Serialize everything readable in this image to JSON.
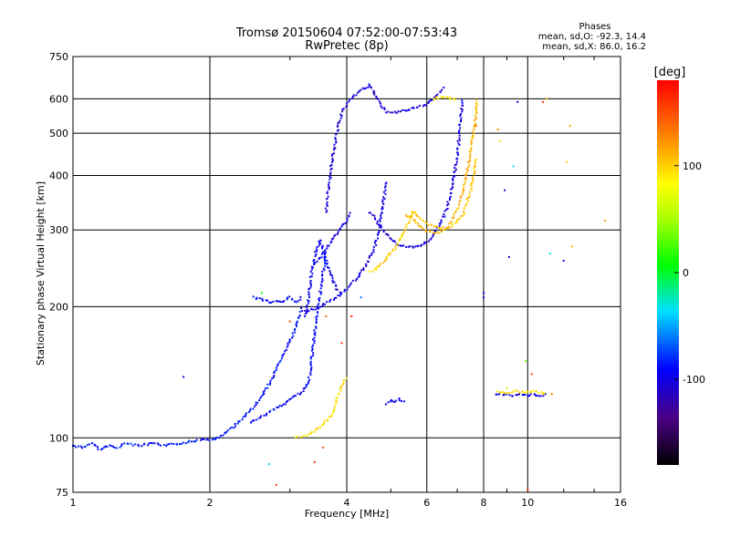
{
  "chart_data": {
    "type": "scatter",
    "title": "Tromsø 20150604 07:52:00-07:53:43",
    "subtitle": "RwPretec (8p)",
    "xlabel": "Frequency [MHz]",
    "ylabel": "Stationary phase Virtual Height [km]",
    "x_scale": "log",
    "y_scale": "log",
    "xlim": [
      1,
      16
    ],
    "ylim": [
      75,
      750
    ],
    "x_ticks": [
      1,
      2,
      4,
      6,
      8,
      10,
      16
    ],
    "y_ticks": [
      75,
      100,
      200,
      300,
      400,
      500,
      600,
      750
    ],
    "grid": true,
    "stats": {
      "title": "Phases",
      "line1": "mean, sd,O: -92.3, 14.4",
      "line2": "mean, sd,X:  86.0, 16.2"
    },
    "colorbar": {
      "label": "[deg]",
      "range": [
        -180,
        180
      ],
      "ticks": [
        100,
        0,
        -100
      ],
      "placement": "right"
    },
    "traces": [
      {
        "phase": -85,
        "points": [
          [
            1.0,
            96
          ],
          [
            1.05,
            95
          ],
          [
            1.1,
            97
          ],
          [
            1.15,
            94
          ],
          [
            1.2,
            96
          ],
          [
            1.25,
            95
          ],
          [
            1.3,
            97
          ],
          [
            1.4,
            96
          ],
          [
            1.5,
            97
          ],
          [
            1.6,
            96
          ],
          [
            1.7,
            97
          ],
          [
            1.8,
            98
          ],
          [
            1.9,
            99
          ],
          [
            2.0,
            99
          ],
          [
            2.1,
            100
          ],
          [
            2.2,
            104
          ],
          [
            2.3,
            108
          ],
          [
            2.4,
            113
          ],
          [
            2.5,
            118
          ],
          [
            2.6,
            124
          ],
          [
            2.7,
            133
          ],
          [
            2.8,
            143
          ],
          [
            2.9,
            155
          ],
          [
            3.0,
            167
          ],
          [
            3.1,
            180
          ],
          [
            3.2,
            200
          ]
        ]
      },
      {
        "phase": -90,
        "points": [
          [
            2.45,
            108
          ],
          [
            2.6,
            112
          ],
          [
            2.8,
            117
          ],
          [
            3.0,
            122
          ],
          [
            3.2,
            128
          ],
          [
            3.3,
            135
          ],
          [
            3.35,
            150
          ],
          [
            3.4,
            175
          ],
          [
            3.45,
            195
          ],
          [
            3.5,
            215
          ],
          [
            3.55,
            240
          ],
          [
            3.6,
            270
          ]
        ]
      },
      {
        "phase": -95,
        "points": [
          [
            3.25,
            190
          ],
          [
            3.3,
            210
          ],
          [
            3.35,
            240
          ],
          [
            3.4,
            260
          ],
          [
            3.45,
            275
          ],
          [
            3.5,
            285
          ],
          [
            3.6,
            255
          ],
          [
            3.7,
            235
          ],
          [
            3.8,
            220
          ],
          [
            3.9,
            215
          ]
        ]
      },
      {
        "phase": -100,
        "points": [
          [
            3.25,
            195
          ],
          [
            3.5,
            200
          ],
          [
            3.8,
            210
          ],
          [
            4.0,
            220
          ],
          [
            4.2,
            232
          ],
          [
            4.4,
            248
          ],
          [
            4.6,
            270
          ],
          [
            4.7,
            300
          ],
          [
            4.8,
            340
          ],
          [
            4.9,
            390
          ]
        ]
      },
      {
        "phase": -98,
        "points": [
          [
            3.4,
            250
          ],
          [
            3.6,
            270
          ],
          [
            3.8,
            295
          ],
          [
            4.0,
            315
          ],
          [
            4.1,
            330
          ]
        ]
      },
      {
        "phase": -92,
        "points": [
          [
            2.5,
            210
          ],
          [
            2.7,
            205
          ],
          [
            2.9,
            205
          ],
          [
            3.0,
            210
          ],
          [
            3.1,
            205
          ],
          [
            3.2,
            212
          ]
        ]
      },
      {
        "phase": -105,
        "points": [
          [
            3.6,
            330
          ],
          [
            3.7,
            420
          ],
          [
            3.8,
            500
          ],
          [
            3.9,
            560
          ],
          [
            4.1,
            600
          ],
          [
            4.3,
            630
          ],
          [
            4.45,
            640
          ],
          [
            4.5,
            645
          ],
          [
            4.6,
            620
          ],
          [
            4.7,
            590
          ],
          [
            4.9,
            560
          ],
          [
            5.0,
            555
          ],
          [
            5.2,
            560
          ],
          [
            5.4,
            565
          ],
          [
            5.6,
            570
          ],
          [
            5.8,
            575
          ],
          [
            6.0,
            580
          ],
          [
            6.2,
            600
          ],
          [
            6.4,
            620
          ],
          [
            6.6,
            640
          ]
        ]
      },
      {
        "phase": -102,
        "points": [
          [
            4.5,
            330
          ],
          [
            4.8,
            300
          ],
          [
            5.0,
            285
          ],
          [
            5.2,
            278
          ],
          [
            5.4,
            275
          ],
          [
            5.6,
            274
          ],
          [
            5.8,
            276
          ],
          [
            6.0,
            282
          ],
          [
            6.2,
            292
          ],
          [
            6.4,
            308
          ],
          [
            6.6,
            330
          ],
          [
            6.8,
            370
          ],
          [
            7.0,
            440
          ],
          [
            7.1,
            520
          ],
          [
            7.2,
            600
          ]
        ]
      },
      {
        "phase": -95,
        "points": [
          [
            4.9,
            120
          ],
          [
            5.0,
            122
          ],
          [
            5.1,
            121
          ],
          [
            5.2,
            123
          ],
          [
            5.3,
            122
          ],
          [
            5.4,
            121
          ]
        ]
      },
      {
        "phase": -100,
        "points": [
          [
            8.5,
            126
          ],
          [
            8.8,
            125
          ],
          [
            9.0,
            126
          ],
          [
            9.3,
            125
          ],
          [
            9.6,
            126
          ],
          [
            10.0,
            125
          ],
          [
            10.3,
            126
          ],
          [
            10.6,
            125
          ],
          [
            11.0,
            126
          ]
        ]
      },
      {
        "phase": 95,
        "points": [
          [
            3.1,
            100
          ],
          [
            3.2,
            101
          ],
          [
            3.3,
            102
          ],
          [
            3.5,
            106
          ],
          [
            3.7,
            112
          ],
          [
            3.8,
            122
          ],
          [
            3.9,
            132
          ],
          [
            4.0,
            138
          ]
        ]
      },
      {
        "phase": 100,
        "points": [
          [
            4.5,
            240
          ],
          [
            4.6,
            243
          ],
          [
            4.7,
            247
          ],
          [
            4.8,
            252
          ],
          [
            4.9,
            258
          ],
          [
            5.0,
            266
          ],
          [
            5.1,
            272
          ],
          [
            5.2,
            280
          ],
          [
            5.3,
            290
          ],
          [
            5.4,
            302
          ],
          [
            5.5,
            318
          ],
          [
            5.6,
            334
          ]
        ]
      },
      {
        "phase": 110,
        "points": [
          [
            5.4,
            325
          ],
          [
            5.6,
            318
          ],
          [
            5.8,
            305
          ],
          [
            6.0,
            298
          ],
          [
            6.2,
            295
          ],
          [
            6.4,
            296
          ],
          [
            6.6,
            300
          ],
          [
            6.8,
            315
          ],
          [
            7.0,
            335
          ],
          [
            7.2,
            365
          ],
          [
            7.4,
            420
          ],
          [
            7.6,
            500
          ],
          [
            7.7,
            560
          ],
          [
            7.75,
            600
          ]
        ]
      },
      {
        "phase": 105,
        "points": [
          [
            5.6,
            330
          ],
          [
            6.0,
            310
          ],
          [
            6.4,
            302
          ],
          [
            6.8,
            305
          ],
          [
            7.2,
            325
          ],
          [
            7.5,
            370
          ],
          [
            7.7,
            440
          ]
        ]
      },
      {
        "phase": 90,
        "points": [
          [
            6.2,
            600
          ],
          [
            6.5,
            605
          ],
          [
            6.8,
            600
          ],
          [
            7.0,
            595
          ]
        ]
      },
      {
        "phase": 95,
        "points": [
          [
            8.6,
            128
          ],
          [
            9.0,
            127
          ],
          [
            9.4,
            128
          ],
          [
            9.8,
            127
          ],
          [
            10.2,
            128
          ],
          [
            10.6,
            127
          ],
          [
            11.0,
            126
          ]
        ]
      }
    ],
    "scatter": [
      {
        "x": 1.75,
        "y": 138,
        "phase": -100
      },
      {
        "x": 2.6,
        "y": 215,
        "phase": 10
      },
      {
        "x": 2.7,
        "y": 87,
        "phase": -40
      },
      {
        "x": 2.8,
        "y": 78,
        "phase": 160
      },
      {
        "x": 3.0,
        "y": 185,
        "phase": 150
      },
      {
        "x": 3.55,
        "y": 95,
        "phase": 150
      },
      {
        "x": 3.6,
        "y": 190,
        "phase": 140
      },
      {
        "x": 3.9,
        "y": 165,
        "phase": 160
      },
      {
        "x": 4.1,
        "y": 190,
        "phase": 170
      },
      {
        "x": 4.3,
        "y": 210,
        "phase": -60
      },
      {
        "x": 4.6,
        "y": 620,
        "phase": -120
      },
      {
        "x": 7.7,
        "y": 520,
        "phase": 140
      },
      {
        "x": 8.6,
        "y": 510,
        "phase": 130
      },
      {
        "x": 8.7,
        "y": 480,
        "phase": 90
      },
      {
        "x": 8.9,
        "y": 370,
        "phase": -110
      },
      {
        "x": 9.1,
        "y": 260,
        "phase": -110
      },
      {
        "x": 8.0,
        "y": 215,
        "phase": -110
      },
      {
        "x": 8.0,
        "y": 210,
        "phase": -110
      },
      {
        "x": 9.5,
        "y": 590,
        "phase": -110
      },
      {
        "x": 10.8,
        "y": 590,
        "phase": 160
      },
      {
        "x": 11.0,
        "y": 600,
        "phase": 110
      },
      {
        "x": 12.4,
        "y": 520,
        "phase": 110
      },
      {
        "x": 12.2,
        "y": 430,
        "phase": 100
      },
      {
        "x": 9.3,
        "y": 420,
        "phase": -30
      },
      {
        "x": 12.0,
        "y": 255,
        "phase": -110
      },
      {
        "x": 12.5,
        "y": 275,
        "phase": 110
      },
      {
        "x": 11.2,
        "y": 265,
        "phase": -30
      },
      {
        "x": 14.8,
        "y": 315,
        "phase": 120
      },
      {
        "x": 10.0,
        "y": 76,
        "phase": 160
      },
      {
        "x": 9.9,
        "y": 150,
        "phase": 30
      },
      {
        "x": 10.2,
        "y": 140,
        "phase": 150
      },
      {
        "x": 9.0,
        "y": 130,
        "phase": 60
      },
      {
        "x": 11.3,
        "y": 126,
        "phase": 130
      },
      {
        "x": 3.4,
        "y": 88,
        "phase": 160
      }
    ]
  }
}
